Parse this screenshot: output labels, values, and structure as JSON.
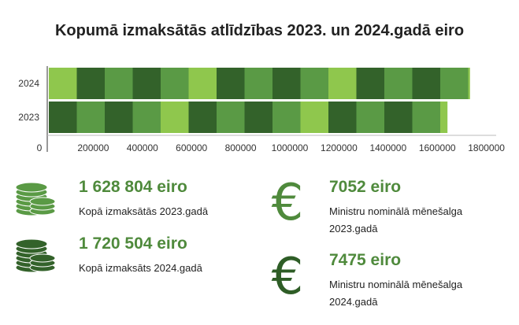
{
  "title": "Kopumā izmaksātās atlīdzības 2023. un 2024.gadā eiro",
  "chart_data": {
    "type": "bar",
    "orientation": "horizontal",
    "categories": [
      "2024",
      "2023"
    ],
    "values": [
      1720504,
      1628804
    ],
    "title": "Kopumā izmaksātās atlīdzības 2023. un 2024.gadā eiro",
    "xlabel": "",
    "ylabel": "",
    "xlim": [
      0,
      1800000
    ],
    "ticks": [
      "0",
      "200000",
      "400000",
      "600000",
      "800000",
      "1000000",
      "1200000",
      "1400000",
      "1600000",
      "1800000"
    ],
    "tick_values": [
      0,
      200000,
      400000,
      600000,
      800000,
      1000000,
      1200000,
      1400000,
      1600000,
      1800000
    ],
    "grid": false,
    "legend": "none"
  },
  "colors": {
    "light_green": "#8fc74d",
    "mid_green": "#5a9a45",
    "dark_green": "#33622a",
    "stat_text": "#4f8a3c",
    "euro_2023": "#4f8a3c",
    "euro_2024": "#2e5d26"
  },
  "stats": {
    "paid_2023": {
      "value": "1 628 804 eiro",
      "label": "Kopā izmaksātās 2023.gadā",
      "icon": "coins-icon"
    },
    "paid_2024": {
      "value": "1 720 504 eiro",
      "label": "Kopā izmaksāts 2024.gadā",
      "icon": "coins-icon"
    },
    "salary_2023": {
      "value": "7052 eiro",
      "label_line1": "Ministru nominālā mēnešalga",
      "label_line2": "2023.gadā",
      "icon": "euro-icon"
    },
    "salary_2024": {
      "value": "7475 eiro",
      "label_line1": "Ministru nominālā mēnešalga",
      "label_line2": "2024.gadā",
      "icon": "euro-icon"
    }
  },
  "icons": {
    "euro_symbol": "€"
  }
}
